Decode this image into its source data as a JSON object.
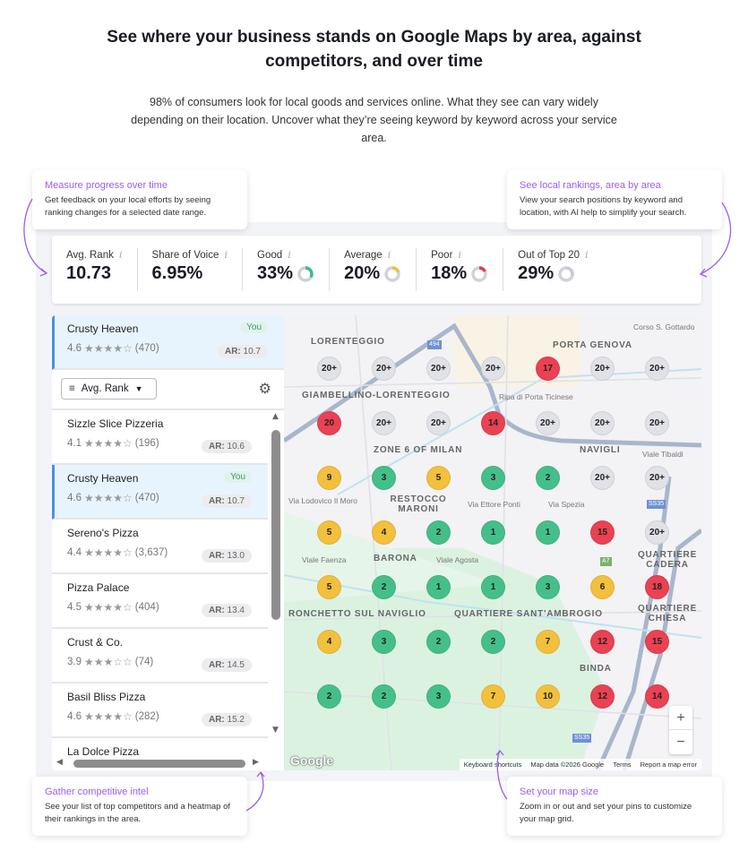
{
  "header": {
    "title": "See where your business stands on Google Maps by area, against competitors, and over time",
    "subtitle": "98% of consumers look for local goods and services online. What they see can vary widely depending on their location. Uncover what they’re seeing keyword by keyword across your service area."
  },
  "callouts": [
    {
      "title": "Measure progress over time",
      "text": "Get feedback on your local efforts by seeing ranking changes for a selected date range."
    },
    {
      "title": "See local rankings, area by area",
      "text": "View your search positions by keyword and location, with AI help to simplify your search."
    },
    {
      "title": "Gather competitive intel",
      "text": "See your list of top competitors and a heatmap of their rankings in the area."
    },
    {
      "title": "Set your map size",
      "text": "Zoom in or out and set your pins to customize your map grid."
    }
  ],
  "metrics": [
    {
      "label": "Avg. Rank",
      "value": "10.73"
    },
    {
      "label": "Share of Voice",
      "value": "6.95%"
    },
    {
      "label": "Good",
      "value": "33%",
      "fraction": 0.33,
      "color": "#3dbb85"
    },
    {
      "label": "Average",
      "value": "20%",
      "fraction": 0.2,
      "color": "#f2bd35"
    },
    {
      "label": "Poor",
      "value": "18%",
      "fraction": 0.18,
      "color": "#e8394b"
    },
    {
      "label": "Out of Top 20",
      "value": "29%",
      "fraction": 0.29,
      "color": "#c9cbd2"
    }
  ],
  "info_icon": "i",
  "pinned": {
    "name": "Crusty Heaven",
    "rating": "4.6",
    "stars": 4,
    "reviews": "(470)",
    "ar_label": "AR:",
    "ar": "10.7",
    "badge": "You"
  },
  "sort": {
    "label": "Avg. Rank"
  },
  "competitors": [
    {
      "name": "Sizzle Slice Pizzeria",
      "rating": "4.1",
      "stars": 4,
      "reviews": "(196)",
      "ar": "10.6"
    },
    {
      "name": "Crusty Heaven",
      "rating": "4.6",
      "stars": 4,
      "reviews": "(470)",
      "ar": "10.7",
      "badge": "You"
    },
    {
      "name": "Sereno's Pizza",
      "rating": "4.4",
      "stars": 4,
      "reviews": "(3,637)",
      "ar": "13.0"
    },
    {
      "name": "Pizza Palace",
      "rating": "4.5",
      "stars": 4,
      "reviews": "(404)",
      "ar": "13.4"
    },
    {
      "name": "Crust & Co.",
      "rating": "3.9",
      "stars": 3,
      "reviews": "(74)",
      "ar": "14.5"
    },
    {
      "name": "Basil Bliss Pizza",
      "rating": "4.6",
      "stars": 4,
      "reviews": "(282)",
      "ar": "15.2"
    },
    {
      "name": "La Dolce Pizza"
    }
  ],
  "map": {
    "labels": [
      "LORENTEGGIO",
      "PORTA GENOVA",
      "GIAMBELLINO-LORENTEGGIO",
      "NAVIGLI",
      "ZONE 6 OF MILAN",
      "RESTOCCO MARONI",
      "BARONA",
      "RONCHETTO SUL NAVIGLIO",
      "QUARTIERE SANT'AMBROGIO",
      "BINDA",
      "QUARTIERE CADERA",
      "QUARTIERE CHIESA"
    ],
    "streets": [
      "Ripa di Porta Ticinese",
      "Via Lodovico Il Moro",
      "Via Ettore Ponti",
      "Viale Faenza",
      "Viale Agosta",
      "Via Spezia",
      "Viale Tibaldi",
      "Corso S. Gottardo"
    ],
    "road_badges": [
      "SS35",
      "A7",
      "494"
    ],
    "grid": [
      [
        "20+",
        "20+",
        "20+",
        "20+",
        "17",
        "20+",
        "20+"
      ],
      [
        "20",
        "20+",
        "20+",
        "14",
        "20+",
        "20+",
        "20+"
      ],
      [
        "9",
        "3",
        "5",
        "3",
        "2",
        "20+",
        "20+"
      ],
      [
        "5",
        "4",
        "2",
        "1",
        "1",
        "15",
        "20+"
      ],
      [
        "5",
        "2",
        "1",
        "1",
        "3",
        "6",
        "18"
      ],
      [
        "4",
        "3",
        "2",
        "2",
        "7",
        "12",
        "15"
      ],
      [
        "2",
        "2",
        "3",
        "7",
        "10",
        "12",
        "14"
      ]
    ],
    "colors": {
      "good": "#45bf8a",
      "average": "#f2c03c",
      "poor": "#ea4153",
      "out": "#e1e2e8"
    },
    "zoom_in": "+",
    "zoom_out": "−",
    "logo": "Google",
    "attribution": [
      "Keyboard shortcuts",
      "Map data ©2026 Google",
      "Terms",
      "Report a map error"
    ]
  }
}
